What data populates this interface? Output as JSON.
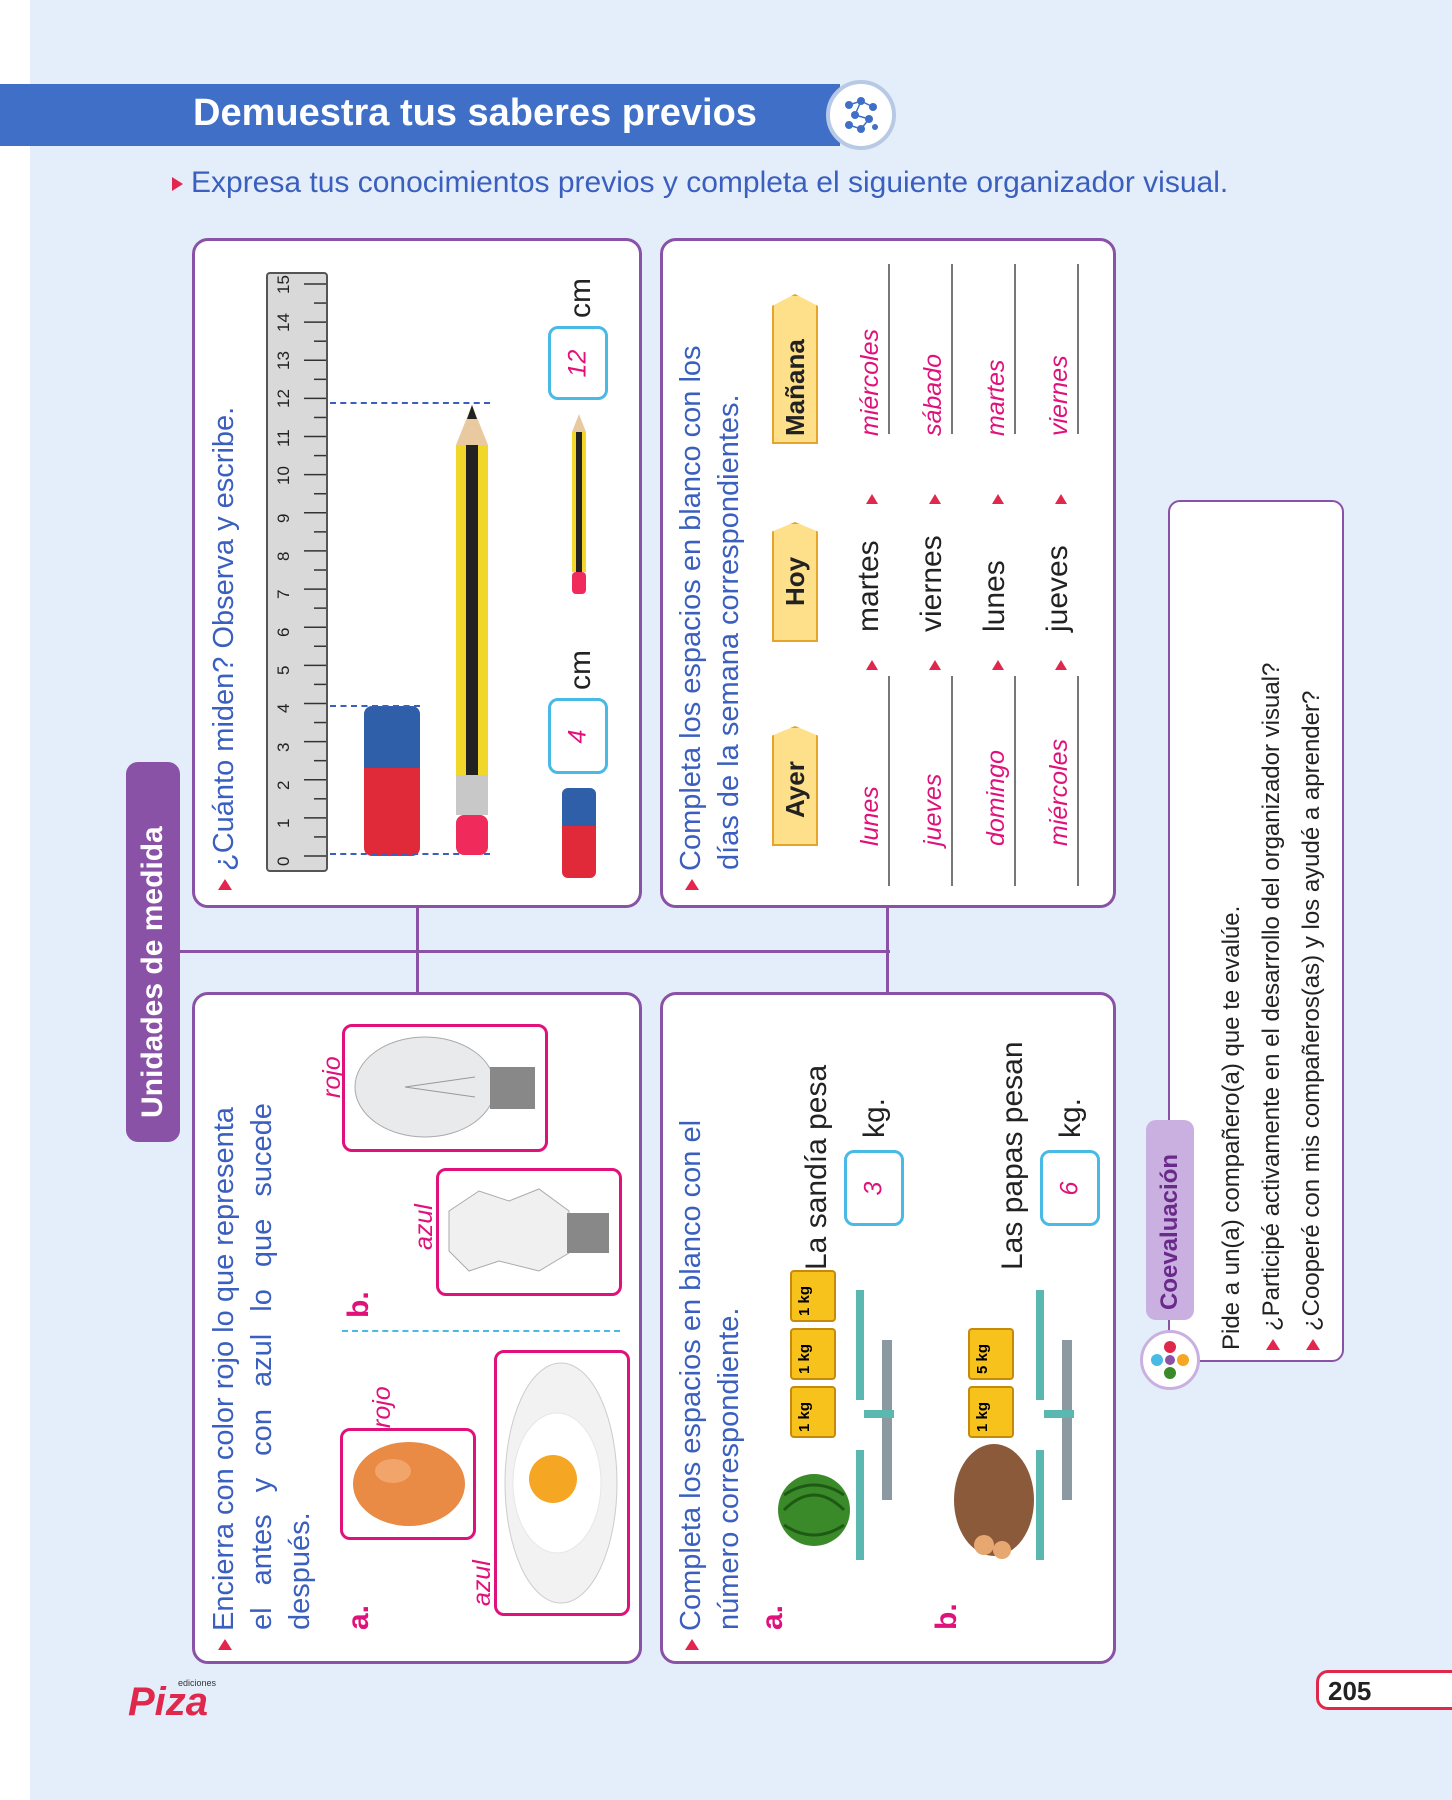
{
  "header": {
    "title": "Demuestra tus saberes previos",
    "instruction": "Expresa tus conocimientos previos y completa el siguiente organizador visual."
  },
  "central_label": "Unidades de medida",
  "measure": {
    "question": "¿Cuánto miden? Observa y escribe.",
    "ruler_ticks": [
      "0",
      "1",
      "2",
      "3",
      "4",
      "5",
      "6",
      "7",
      "8",
      "9",
      "10",
      "11",
      "12",
      "13",
      "14",
      "15"
    ],
    "eraser_value": "4",
    "pencil_value": "12",
    "unit": "cm"
  },
  "days": {
    "question_line1": "Completa los espacios en blanco con los",
    "question_line2": "días de la semana correspondientes.",
    "col_ayer": "Ayer",
    "col_hoy": "Hoy",
    "col_manana": "Mañana",
    "rows": [
      {
        "ayer": "lunes",
        "hoy": "martes",
        "manana": "miércoles"
      },
      {
        "ayer": "jueves",
        "hoy": "viernes",
        "manana": "sábado"
      },
      {
        "ayer": "domingo",
        "hoy": "lunes",
        "manana": "martes"
      },
      {
        "ayer": "miércoles",
        "hoy": "jueves",
        "manana": "viernes"
      }
    ]
  },
  "sequence": {
    "question_line1": "Encierra con color rojo lo que representa",
    "question_line2": "el antes y con azul lo que sucede",
    "question_line3": "después.",
    "item_a": "a.",
    "item_b": "b.",
    "egg_label": "rojo",
    "fried_label": "azul",
    "bulb_label": "rojo",
    "broken_label": "azul"
  },
  "weights": {
    "question_line1": "Completa los espacios en blanco con el",
    "question_line2": "número correspondiente.",
    "item_a": "a.",
    "item_b": "b.",
    "a_text": "La sandía pesa",
    "a_value": "3",
    "b_text": "Las papas pesan",
    "b_value": "6",
    "unit": "kg.",
    "weight_a": [
      {
        "n": "1",
        "u": "kg"
      },
      {
        "n": "1",
        "u": "kg"
      },
      {
        "n": "1",
        "u": "kg"
      }
    ],
    "weight_b": [
      {
        "n": "1",
        "u": "kg"
      },
      {
        "n": "5",
        "u": "kg"
      }
    ]
  },
  "coevaluacion": {
    "title": "Coevaluación",
    "line1": "Pide a un(a) compañero(a) que te evalúe.",
    "line2": "¿Participé activamente en el desarrollo del organizador visual?",
    "line3": "¿Cooperé con mis compañeros(as) y los ayudé a aprender?"
  },
  "footer": {
    "brand": "Piza",
    "brand_small": "ediciones",
    "page_number": "205"
  },
  "colors": {
    "banner": "#3f6fc7",
    "purple": "#8a52a6",
    "pink": "#e0117a",
    "blue_text": "#3a5fbf",
    "answer_border": "#49b9e6"
  }
}
